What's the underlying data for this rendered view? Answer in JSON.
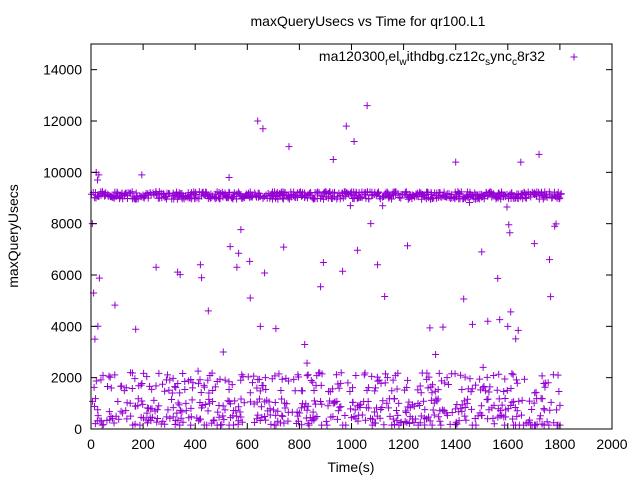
{
  "chart_data": {
    "type": "scatter",
    "title": "maxQueryUsecs vs Time for qr100.L1",
    "xlabel": "Time(s)",
    "ylabel": "maxQueryUsecs",
    "xlim": [
      0,
      2000
    ],
    "ylim": [
      0,
      15000
    ],
    "xticks": [
      "0",
      "200",
      "400",
      "600",
      "800",
      "1000",
      "1200",
      "1400",
      "1600",
      "1800",
      "2000"
    ],
    "yticks": [
      "0",
      "2000",
      "4000",
      "6000",
      "8000",
      "10000",
      "12000",
      "14000"
    ],
    "legend": {
      "position": "top-right",
      "label_parts": [
        "ma120300",
        "r",
        "el",
        "w",
        "ithdbg.cz12c",
        "s",
        "ync",
        "c",
        "8r32"
      ],
      "label_plain": "ma120300_rel_withdbg.cz12c_sync_c8r32"
    },
    "color": "#9400d3",
    "marker": "plus",
    "series": [
      {
        "name": "ma120300_rel_withdbg.cz12c_sync_c8r32",
        "x_range": [
          0,
          1800
        ],
        "sample_interval_s": 5,
        "typical_bands_usecs": [
          {
            "level": 9100,
            "spread": 150,
            "description": "dense main band"
          },
          {
            "level": 300,
            "spread": 250
          },
          {
            "level": 900,
            "spread": 300
          },
          {
            "level": 1800,
            "spread": 400
          }
        ],
        "notable_points": [
          {
            "x": 20,
            "y": 10000
          },
          {
            "x": 25,
            "y": 9700
          },
          {
            "x": 30,
            "y": 9900
          },
          {
            "x": 640,
            "y": 12000
          },
          {
            "x": 660,
            "y": 11700
          },
          {
            "x": 980,
            "y": 11800
          },
          {
            "x": 1060,
            "y": 12600
          },
          {
            "x": 195,
            "y": 9900
          },
          {
            "x": 1400,
            "y": 10400
          },
          {
            "x": 1720,
            "y": 10700
          },
          {
            "x": 1650,
            "y": 10400
          },
          {
            "x": 930,
            "y": 10500
          },
          {
            "x": 760,
            "y": 11000
          },
          {
            "x": 1010,
            "y": 11200
          },
          {
            "x": 530,
            "y": 9800
          },
          {
            "x": 5,
            "y": 8000
          },
          {
            "x": 10,
            "y": 5300
          },
          {
            "x": 15,
            "y": 3500
          },
          {
            "x": 250,
            "y": 6300
          },
          {
            "x": 420,
            "y": 6400
          },
          {
            "x": 560,
            "y": 6300
          },
          {
            "x": 650,
            "y": 4000
          },
          {
            "x": 1100,
            "y": 6400
          },
          {
            "x": 1500,
            "y": 6900
          },
          {
            "x": 1780,
            "y": 7900
          },
          {
            "x": 1760,
            "y": 6600
          },
          {
            "x": 1600,
            "y": 4000
          }
        ]
      }
    ]
  }
}
